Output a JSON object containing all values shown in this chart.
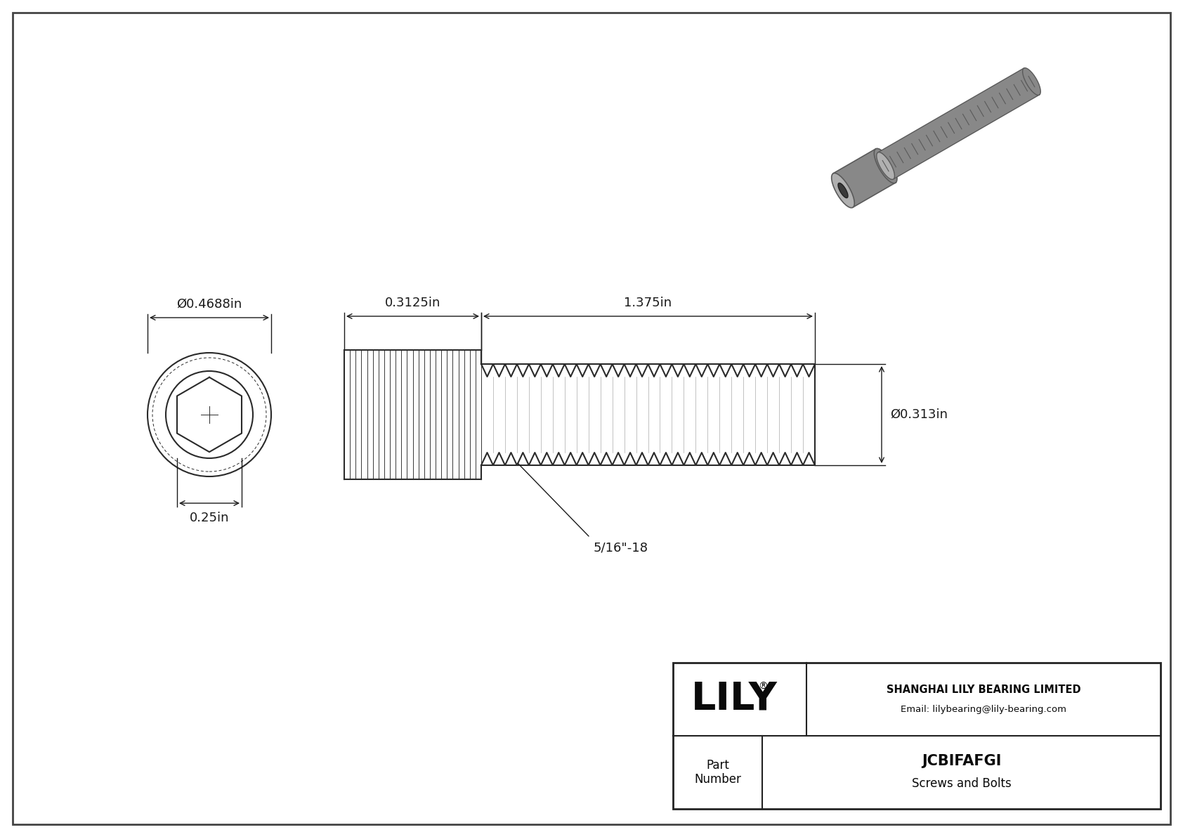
{
  "bg_color": "#ffffff",
  "border_color": "#555555",
  "line_color": "#2a2a2a",
  "dim_color": "#1a1a1a",
  "title": "JCBIFAFGI",
  "subtitle": "Screws and Bolts",
  "company_name": "SHANGHAI LILY BEARING LIMITED",
  "company_email": "Email: lilybearing@lily-bearing.com",
  "part_label": "Part\nNumber",
  "lily_logo": "LILY",
  "dim_head_diameter": "Ø0.4688in",
  "dim_socket_diameter": "0.25in",
  "dim_head_length": "0.3125in",
  "dim_thread_length": "1.375in",
  "dim_thread_diameter": "Ø0.313in",
  "dim_thread_spec": "5/16\"-18"
}
